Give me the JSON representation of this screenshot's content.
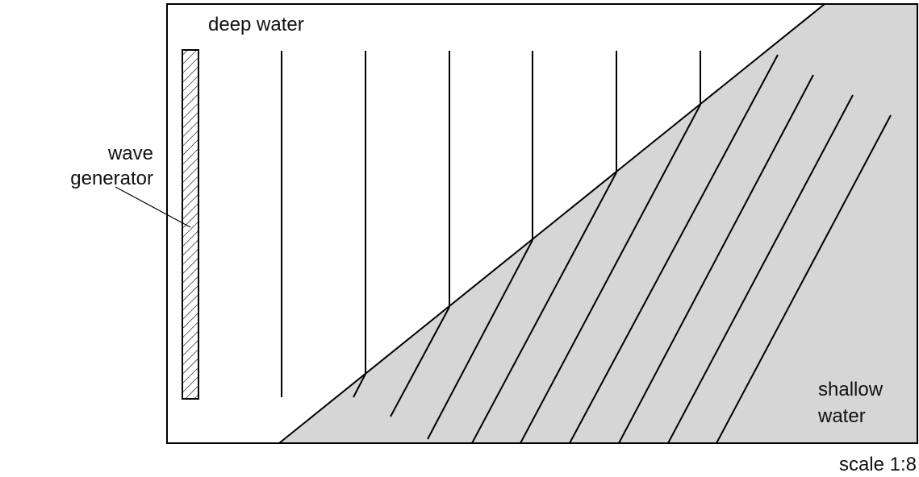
{
  "labels": {
    "deep_water": "deep water",
    "wave_generator": [
      "wave",
      "generator"
    ],
    "shallow_water": [
      "shallow",
      "water"
    ],
    "scale": "scale 1:8"
  }
}
